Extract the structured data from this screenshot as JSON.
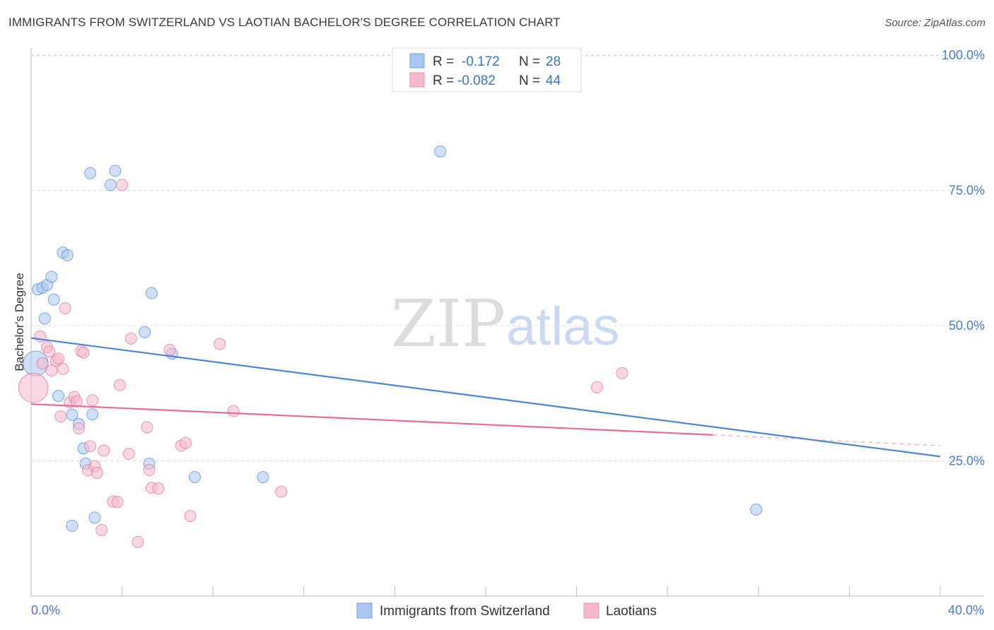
{
  "header": {
    "title": "IMMIGRANTS FROM SWITZERLAND VS LAOTIAN BACHELOR'S DEGREE CORRELATION CHART",
    "source": "Source: ZipAtlas.com"
  },
  "watermark": {
    "zip": "ZIP",
    "atlas": "atlas"
  },
  "legend_top": {
    "rows": [
      {
        "r_label": "R = ",
        "r_value": "-0.172",
        "n_label": "N = ",
        "n_value": "28",
        "color": "#a9c8f0"
      },
      {
        "r_label": "R = ",
        "r_value": "-0.082",
        "n_label": "N = ",
        "n_value": "44",
        "color": "#f6b8cc"
      }
    ]
  },
  "legend_bottom": [
    {
      "label": "Immigrants from Switzerland",
      "color": "#a9c8f0"
    },
    {
      "label": "Laotians",
      "color": "#f6b8cc"
    }
  ],
  "chart_data": {
    "type": "scatter",
    "title": "IMMIGRANTS FROM SWITZERLAND VS LAOTIAN BACHELOR'S DEGREE CORRELATION CHART",
    "xlabel": "",
    "ylabel": "Bachelor's Degree",
    "xlim": [
      0,
      40
    ],
    "ylim": [
      0,
      105
    ],
    "x_tick_labels": [
      "0.0%",
      "40.0%"
    ],
    "y_ticks": [
      25,
      50,
      75,
      100
    ],
    "y_tick_labels": [
      "25.0%",
      "50.0%",
      "75.0%",
      "100.0%"
    ],
    "grid": true,
    "legend_position": "top-center",
    "series": [
      {
        "name": "Immigrants from Switzerland",
        "color": "#4a86d8",
        "fill": "#a9c8f0",
        "points": [
          [
            0.2,
            43.0,
            2.2
          ],
          [
            0.3,
            56.7,
            1
          ],
          [
            0.5,
            57.0,
            1
          ],
          [
            0.7,
            57.5,
            1
          ],
          [
            0.6,
            51.3,
            1
          ],
          [
            0.9,
            59.0,
            1
          ],
          [
            1.0,
            54.8,
            1
          ],
          [
            1.4,
            63.5,
            1
          ],
          [
            1.6,
            63.0,
            1
          ],
          [
            2.6,
            78.2,
            1
          ],
          [
            3.5,
            76.0,
            1
          ],
          [
            3.7,
            78.6,
            1
          ],
          [
            5.3,
            56.0,
            1
          ],
          [
            5.0,
            48.8,
            1
          ],
          [
            6.2,
            44.8,
            1
          ],
          [
            18.0,
            82.2,
            1
          ],
          [
            1.2,
            37.0,
            1
          ],
          [
            1.8,
            33.5,
            1
          ],
          [
            2.1,
            31.8,
            1
          ],
          [
            2.7,
            33.6,
            1
          ],
          [
            2.3,
            27.3,
            1
          ],
          [
            2.4,
            24.5,
            1
          ],
          [
            5.2,
            24.5,
            1
          ],
          [
            7.2,
            22.0,
            1
          ],
          [
            10.2,
            22.0,
            1
          ],
          [
            1.8,
            13.0,
            1
          ],
          [
            2.8,
            14.5,
            1
          ],
          [
            31.9,
            16.0,
            1
          ]
        ],
        "trend": {
          "x": [
            0,
            40
          ],
          "y": [
            47.7,
            25.8
          ]
        }
      },
      {
        "name": "Laotians",
        "color": "#e56c96",
        "fill": "#f6b8cc",
        "points": [
          [
            0.1,
            38.5,
            2.6
          ],
          [
            0.4,
            48.0,
            1
          ],
          [
            0.5,
            43.0,
            1
          ],
          [
            0.7,
            46.0,
            1
          ],
          [
            0.8,
            45.2,
            1
          ],
          [
            0.9,
            41.7,
            1
          ],
          [
            1.1,
            43.5,
            1
          ],
          [
            1.2,
            43.9,
            1
          ],
          [
            1.4,
            42.0,
            1
          ],
          [
            1.5,
            53.2,
            1
          ],
          [
            1.7,
            35.8,
            1
          ],
          [
            1.9,
            36.8,
            1
          ],
          [
            1.3,
            33.2,
            1
          ],
          [
            2.0,
            36.0,
            1
          ],
          [
            2.2,
            45.3,
            1
          ],
          [
            2.3,
            45.0,
            1
          ],
          [
            2.1,
            31.0,
            1
          ],
          [
            2.7,
            36.2,
            1
          ],
          [
            2.6,
            27.7,
            1
          ],
          [
            3.2,
            26.9,
            1
          ],
          [
            2.5,
            23.3,
            1
          ],
          [
            2.8,
            24.0,
            1
          ],
          [
            2.9,
            22.8,
            1
          ],
          [
            3.9,
            39.0,
            1
          ],
          [
            4.3,
            26.3,
            1
          ],
          [
            4.4,
            47.6,
            1
          ],
          [
            4.0,
            76.0,
            1
          ],
          [
            5.1,
            31.2,
            1
          ],
          [
            5.2,
            23.3,
            1
          ],
          [
            5.3,
            20.0,
            1
          ],
          [
            6.1,
            45.5,
            1
          ],
          [
            6.6,
            27.8,
            1
          ],
          [
            6.8,
            28.3,
            1
          ],
          [
            7.0,
            14.8,
            1
          ],
          [
            8.3,
            46.6,
            1
          ],
          [
            8.9,
            34.2,
            1
          ],
          [
            11.0,
            19.3,
            1
          ],
          [
            3.6,
            17.5,
            1
          ],
          [
            3.8,
            17.4,
            1
          ],
          [
            3.1,
            12.2,
            1
          ],
          [
            4.7,
            10.0,
            1
          ],
          [
            24.9,
            38.6,
            1
          ],
          [
            26.0,
            41.2,
            1
          ],
          [
            5.6,
            19.9,
            1
          ]
        ],
        "trend": {
          "x": [
            0,
            30
          ],
          "y": [
            35.5,
            29.8
          ]
        },
        "trend_dashed": {
          "x": [
            30,
            40
          ],
          "y": [
            29.8,
            27.8
          ]
        }
      }
    ]
  }
}
